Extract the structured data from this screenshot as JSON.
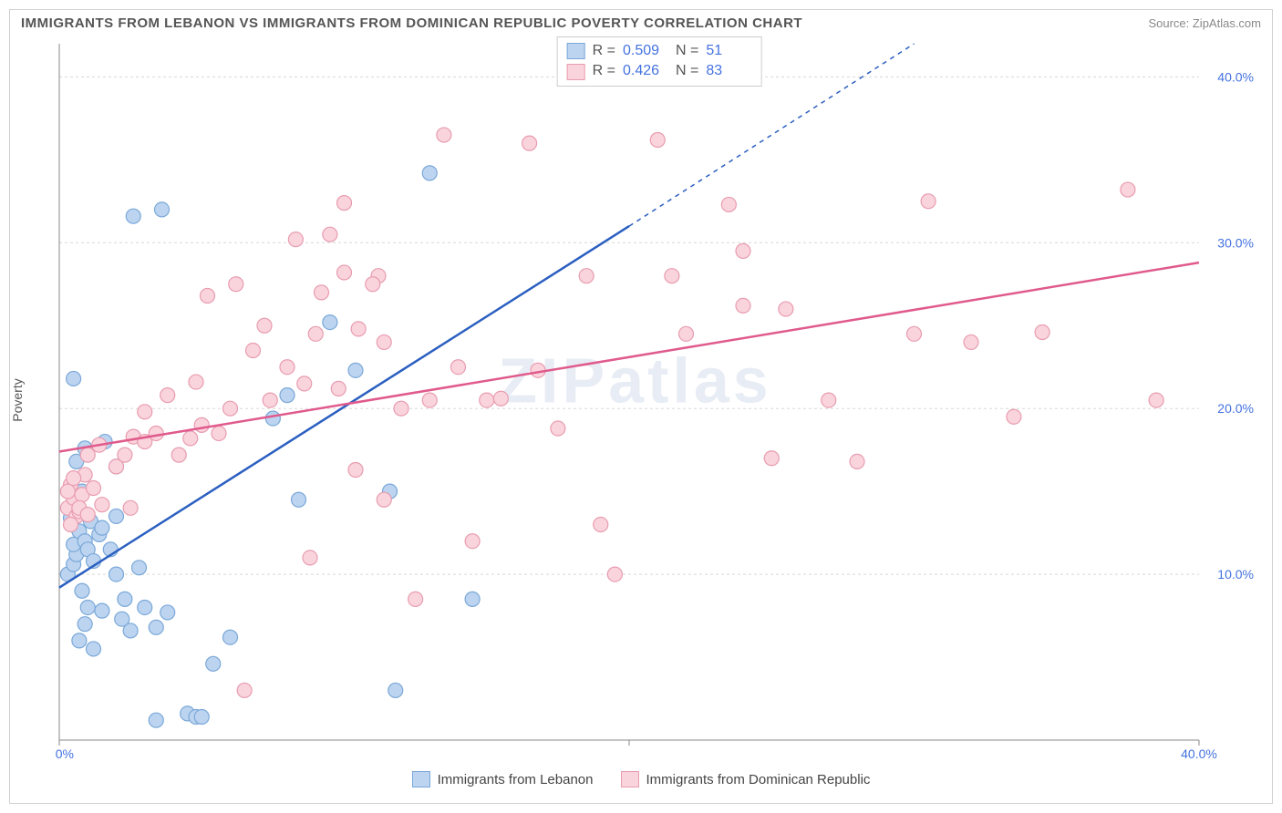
{
  "title": "IMMIGRANTS FROM LEBANON VS IMMIGRANTS FROM DOMINICAN REPUBLIC POVERTY CORRELATION CHART",
  "source_label": "Source: ",
  "source_value": "ZipAtlas.com",
  "ylabel": "Poverty",
  "watermark": "ZIPatlas",
  "chart": {
    "type": "scatter",
    "background_color": "#ffffff",
    "grid_color": "#d8d8d8",
    "axis_color": "#888888",
    "tick_label_color": "#4472e0",
    "tick_label_fontsize": 14,
    "xlim": [
      0,
      40
    ],
    "ylim": [
      0,
      42
    ],
    "xticks": [
      0,
      20,
      40
    ],
    "xtick_labels": [
      "0.0%",
      "",
      "40.0%"
    ],
    "yticks": [
      10,
      20,
      30,
      40
    ],
    "ytick_labels": [
      "10.0%",
      "20.0%",
      "30.0%",
      "40.0%"
    ],
    "marker_radius": 8,
    "marker_stroke_width": 1.2,
    "trend_line_width": 2.5
  },
  "series": [
    {
      "id": "lebanon",
      "label": "Immigrants from Lebanon",
      "fill_color": "#bcd4f0",
      "stroke_color": "#7aa8d8",
      "line_color": "#2b5fc0",
      "R_label": "R =",
      "R_value": "0.509",
      "N_label": "N =",
      "N_value": "51",
      "trend": {
        "x1": 0,
        "y1": 9.2,
        "x2": 20,
        "y2": 31,
        "ext_x2": 30,
        "ext_y2": 42
      },
      "points": [
        [
          0.3,
          10.0
        ],
        [
          0.5,
          10.6
        ],
        [
          0.6,
          11.2
        ],
        [
          0.5,
          11.8
        ],
        [
          0.7,
          12.6
        ],
        [
          0.4,
          13.4
        ],
        [
          0.9,
          12.0
        ],
        [
          1.0,
          11.5
        ],
        [
          1.2,
          10.8
        ],
        [
          1.4,
          12.4
        ],
        [
          1.1,
          13.2
        ],
        [
          0.8,
          15.0
        ],
        [
          0.6,
          16.8
        ],
        [
          0.5,
          21.8
        ],
        [
          1.8,
          11.5
        ],
        [
          2.0,
          10.0
        ],
        [
          2.3,
          8.5
        ],
        [
          2.2,
          7.3
        ],
        [
          2.5,
          6.6
        ],
        [
          1.5,
          7.8
        ],
        [
          1.0,
          8.0
        ],
        [
          0.9,
          7.0
        ],
        [
          0.7,
          6.0
        ],
        [
          1.2,
          5.5
        ],
        [
          3.0,
          8.0
        ],
        [
          3.4,
          6.8
        ],
        [
          3.8,
          7.7
        ],
        [
          4.5,
          1.6
        ],
        [
          4.8,
          1.4
        ],
        [
          5.0,
          1.4
        ],
        [
          5.4,
          4.6
        ],
        [
          6.0,
          6.2
        ],
        [
          3.4,
          1.2
        ],
        [
          2.6,
          31.6
        ],
        [
          3.6,
          32.0
        ],
        [
          7.5,
          19.4
        ],
        [
          8.0,
          20.8
        ],
        [
          8.4,
          14.5
        ],
        [
          9.5,
          25.2
        ],
        [
          10.4,
          22.3
        ],
        [
          11.6,
          15.0
        ],
        [
          11.8,
          3.0
        ],
        [
          13.0,
          34.2
        ],
        [
          14.5,
          8.5
        ],
        [
          2.0,
          16.5
        ],
        [
          2.8,
          10.4
        ],
        [
          0.8,
          9.0
        ],
        [
          1.5,
          12.8
        ],
        [
          2.0,
          13.5
        ],
        [
          0.9,
          17.6
        ],
        [
          1.6,
          18.0
        ]
      ]
    },
    {
      "id": "dominican",
      "label": "Immigrants from Dominican Republic",
      "fill_color": "#fad4dc",
      "stroke_color": "#e89cb0",
      "line_color": "#e05a8c",
      "R_label": "R =",
      "R_value": "0.426",
      "N_label": "N =",
      "N_value": "83",
      "trend": {
        "x1": 0,
        "y1": 17.4,
        "x2": 40,
        "y2": 28.8
      },
      "points": [
        [
          0.3,
          14.0
        ],
        [
          0.5,
          14.6
        ],
        [
          0.4,
          15.4
        ],
        [
          0.8,
          14.8
        ],
        [
          0.9,
          16.0
        ],
        [
          1.2,
          15.2
        ],
        [
          1.5,
          14.2
        ],
        [
          0.6,
          13.5
        ],
        [
          0.4,
          13.0
        ],
        [
          0.7,
          13.8
        ],
        [
          1.0,
          17.2
        ],
        [
          2.0,
          16.5
        ],
        [
          2.3,
          17.2
        ],
        [
          2.6,
          18.3
        ],
        [
          3.0,
          18.0
        ],
        [
          3.4,
          18.5
        ],
        [
          4.6,
          18.2
        ],
        [
          4.8,
          21.6
        ],
        [
          5.0,
          19.0
        ],
        [
          5.6,
          18.5
        ],
        [
          6.0,
          20.0
        ],
        [
          6.8,
          23.5
        ],
        [
          7.2,
          25.0
        ],
        [
          7.4,
          20.5
        ],
        [
          8.0,
          22.5
        ],
        [
          8.6,
          21.5
        ],
        [
          9.0,
          24.5
        ],
        [
          9.2,
          27.0
        ],
        [
          9.5,
          30.5
        ],
        [
          10.0,
          28.2
        ],
        [
          10.0,
          32.4
        ],
        [
          10.4,
          16.3
        ],
        [
          11.2,
          28.0
        ],
        [
          11.4,
          14.5
        ],
        [
          11.4,
          24.0
        ],
        [
          12.5,
          8.5
        ],
        [
          13.0,
          20.5
        ],
        [
          13.5,
          36.5
        ],
        [
          14.0,
          22.5
        ],
        [
          14.5,
          12.0
        ],
        [
          15.0,
          20.5
        ],
        [
          15.5,
          20.6
        ],
        [
          16.5,
          36.0
        ],
        [
          16.8,
          22.3
        ],
        [
          17.5,
          18.8
        ],
        [
          18.5,
          28.0
        ],
        [
          19.0,
          13.0
        ],
        [
          21.0,
          36.2
        ],
        [
          21.5,
          28.0
        ],
        [
          22.0,
          24.5
        ],
        [
          23.5,
          32.3
        ],
        [
          24.0,
          26.2
        ],
        [
          24.0,
          29.5
        ],
        [
          25.0,
          17.0
        ],
        [
          25.5,
          26.0
        ],
        [
          27.0,
          20.5
        ],
        [
          28.0,
          16.8
        ],
        [
          30.0,
          24.5
        ],
        [
          30.5,
          32.5
        ],
        [
          32.0,
          24.0
        ],
        [
          33.5,
          19.5
        ],
        [
          34.5,
          24.6
        ],
        [
          37.5,
          33.2
        ],
        [
          38.5,
          20.5
        ],
        [
          3.0,
          19.8
        ],
        [
          3.8,
          20.8
        ],
        [
          10.5,
          24.8
        ],
        [
          11.0,
          27.5
        ],
        [
          8.3,
          30.2
        ],
        [
          4.2,
          17.2
        ],
        [
          6.5,
          3.0
        ],
        [
          8.8,
          11.0
        ],
        [
          19.5,
          10.0
        ],
        [
          0.3,
          15.0
        ],
        [
          0.5,
          15.8
        ],
        [
          0.7,
          14.0
        ],
        [
          1.0,
          13.6
        ],
        [
          1.4,
          17.8
        ],
        [
          2.5,
          14.0
        ],
        [
          5.2,
          26.8
        ],
        [
          6.2,
          27.5
        ],
        [
          9.8,
          21.2
        ],
        [
          12.0,
          20.0
        ]
      ]
    }
  ]
}
